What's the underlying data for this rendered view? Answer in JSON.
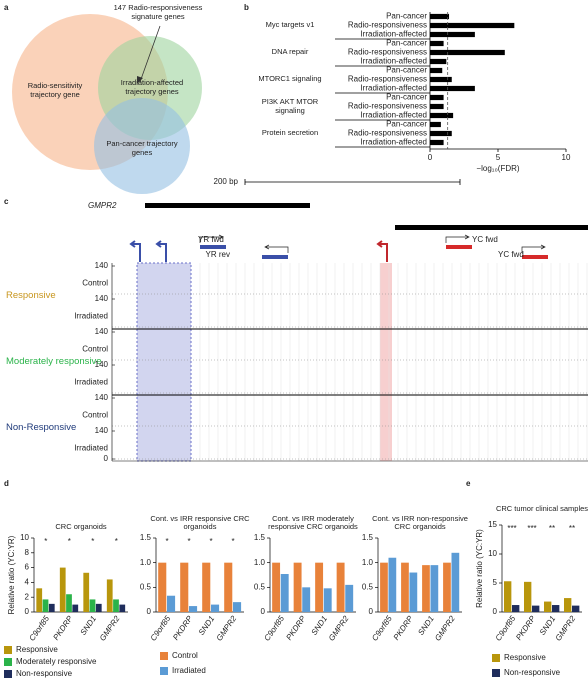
{
  "chart_data": [
    {
      "panel": "a",
      "type": "venn",
      "annotation": "147 Radio-responsiveness signature genes",
      "sets": [
        {
          "name": "Radio-sensitivity trajectory gene",
          "color": "#f7b48a"
        },
        {
          "name": "Irradiation-affected trajectory genes",
          "color": "#9fd49f"
        },
        {
          "name": "Pan-cancer trajectory genes",
          "color": "#94bfe2"
        }
      ]
    },
    {
      "panel": "b",
      "type": "hbar",
      "color": "#000000",
      "groups": [
        {
          "name": "Myc targets v1",
          "categories": [
            "Pan-cancer",
            "Radio-responsiveness",
            "Irradiation-affected"
          ],
          "values": [
            1.4,
            6.2,
            3.3
          ]
        },
        {
          "name": "DNA repair",
          "categories": [
            "Pan-cancer",
            "Radio-responsiveness",
            "Irradiation-affected"
          ],
          "values": [
            1.0,
            5.5,
            1.2
          ]
        },
        {
          "name": "MTORC1 signaling",
          "categories": [
            "Pan-cancer",
            "Radio-responsiveness",
            "Irradiation-affected"
          ],
          "values": [
            0.9,
            1.6,
            3.3
          ]
        },
        {
          "name": "PI3K AKT MTOR signaling",
          "categories": [
            "Pan-cancer",
            "Radio-responsiveness",
            "Irradiation-affected"
          ],
          "values": [
            1.0,
            1.0,
            1.7
          ]
        },
        {
          "name": "Protein secretion",
          "categories": [
            "Pan-cancer",
            "Radio-responsiveness",
            "Irradiation-affected"
          ],
          "values": [
            0.8,
            1.6,
            1.0
          ]
        }
      ],
      "xlim": [
        0,
        10
      ],
      "xticks": [
        0,
        5,
        10
      ],
      "xlabel": "−log₁₀(FDR)",
      "threshold": 1.3
    },
    {
      "panel": "c",
      "type": "tracks",
      "scale_label": "200 bp",
      "gene": "GMPR2",
      "primers": [
        "YR fwd",
        "YR rev",
        "YC fwd",
        "YC fwd"
      ],
      "groups": [
        {
          "name": "Responsive",
          "color": "#c8961e",
          "tracks": [
            "Control",
            "Irradiated"
          ]
        },
        {
          "name": "Moderately responsive",
          "color": "#2bb34a",
          "tracks": [
            "Control",
            "Irradiated"
          ]
        },
        {
          "name": "Non-Responsive",
          "color": "#1f3a7a",
          "tracks": [
            "Control",
            "Irradiated"
          ]
        }
      ],
      "ylim": [
        0,
        140
      ],
      "yticks": [
        0,
        140
      ]
    },
    {
      "panel": "d",
      "type": "bar",
      "title": "CRC organoids",
      "ylabel": "Relative ratio (YC:YR)",
      "categories": [
        "C9orf85",
        "PKDRP",
        "SND1",
        "GMPR2"
      ],
      "series": [
        {
          "name": "Responsive",
          "color": "#b8960c",
          "values": [
            3.2,
            6.0,
            5.3,
            4.4
          ]
        },
        {
          "name": "Moderately responsive",
          "color": "#2bb34a",
          "values": [
            1.7,
            2.4,
            1.7,
            1.7
          ]
        },
        {
          "name": "Non-responsive",
          "color": "#1f2d5c",
          "values": [
            1.1,
            1.0,
            1.1,
            1.0
          ]
        }
      ],
      "significance": [
        "*",
        "*",
        "*",
        "*"
      ],
      "ylim": [
        0,
        10
      ],
      "yticks": [
        0,
        2,
        4,
        6,
        8,
        10
      ],
      "legend": true
    },
    {
      "type": "bar",
      "title": "Cont. vs IRR responsive CRC organoids",
      "categories": [
        "C9orf85",
        "PKDRP",
        "SND1",
        "GMPR2"
      ],
      "series": [
        {
          "name": "Control",
          "color": "#e8823a",
          "values": [
            1.0,
            1.0,
            1.0,
            1.0
          ]
        },
        {
          "name": "Irradiated",
          "color": "#5b9bd5",
          "values": [
            0.33,
            0.12,
            0.15,
            0.2
          ]
        }
      ],
      "significance": [
        "*",
        "*",
        "*",
        "*"
      ],
      "ylim": [
        0,
        1.5
      ],
      "yticks": [
        0,
        0.5,
        {
          "value": 1,
          "label": "1.0"
        },
        1.5
      ],
      "legend": true
    },
    {
      "type": "bar",
      "title": "Cont. vs IRR moderately responsive CRC organoids",
      "categories": [
        "C9orf85",
        "PKDRP",
        "SND1",
        "GMPR2"
      ],
      "series": [
        {
          "name": "Control",
          "color": "#e8823a",
          "values": [
            1.0,
            1.0,
            1.0,
            1.0
          ]
        },
        {
          "name": "Irradiated",
          "color": "#5b9bd5",
          "values": [
            0.77,
            0.5,
            0.48,
            0.55
          ]
        }
      ],
      "ylim": [
        0,
        1.5
      ],
      "yticks": [
        0,
        0.5,
        {
          "value": 1,
          "label": "1.0"
        },
        1.5
      ],
      "legend": false
    },
    {
      "type": "bar",
      "title": "Cont. vs IRR non-responsive CRC organoids",
      "categories": [
        "C9orf85",
        "PKDRP",
        "SND1",
        "GMPR2"
      ],
      "series": [
        {
          "name": "Control",
          "color": "#e8823a",
          "values": [
            1.0,
            1.0,
            0.95,
            1.0
          ]
        },
        {
          "name": "Irradiated",
          "color": "#5b9bd5",
          "values": [
            1.1,
            0.8,
            0.95,
            1.2
          ]
        }
      ],
      "ylim": [
        0,
        1.5
      ],
      "yticks": [
        0,
        0.5,
        {
          "value": 1,
          "label": "1.0"
        },
        1.5
      ],
      "legend": false
    },
    {
      "panel": "e",
      "type": "bar",
      "title": "CRC tumor clinical samples",
      "ylabel": "Relative ratio (YC:YR)",
      "categories": [
        "C9orf85",
        "PKDRP",
        "SND1",
        "GMPR2"
      ],
      "series": [
        {
          "name": "Responsive",
          "color": "#b8960c",
          "values": [
            5.3,
            5.2,
            1.8,
            2.4
          ]
        },
        {
          "name": "Non-responsive",
          "color": "#1f2d5c",
          "values": [
            1.2,
            1.1,
            1.2,
            1.1
          ]
        }
      ],
      "significance": [
        "***",
        "***",
        "**",
        "**"
      ],
      "ylim": [
        0,
        15
      ],
      "yticks": [
        0,
        5,
        10,
        15
      ],
      "legend": true
    }
  ]
}
